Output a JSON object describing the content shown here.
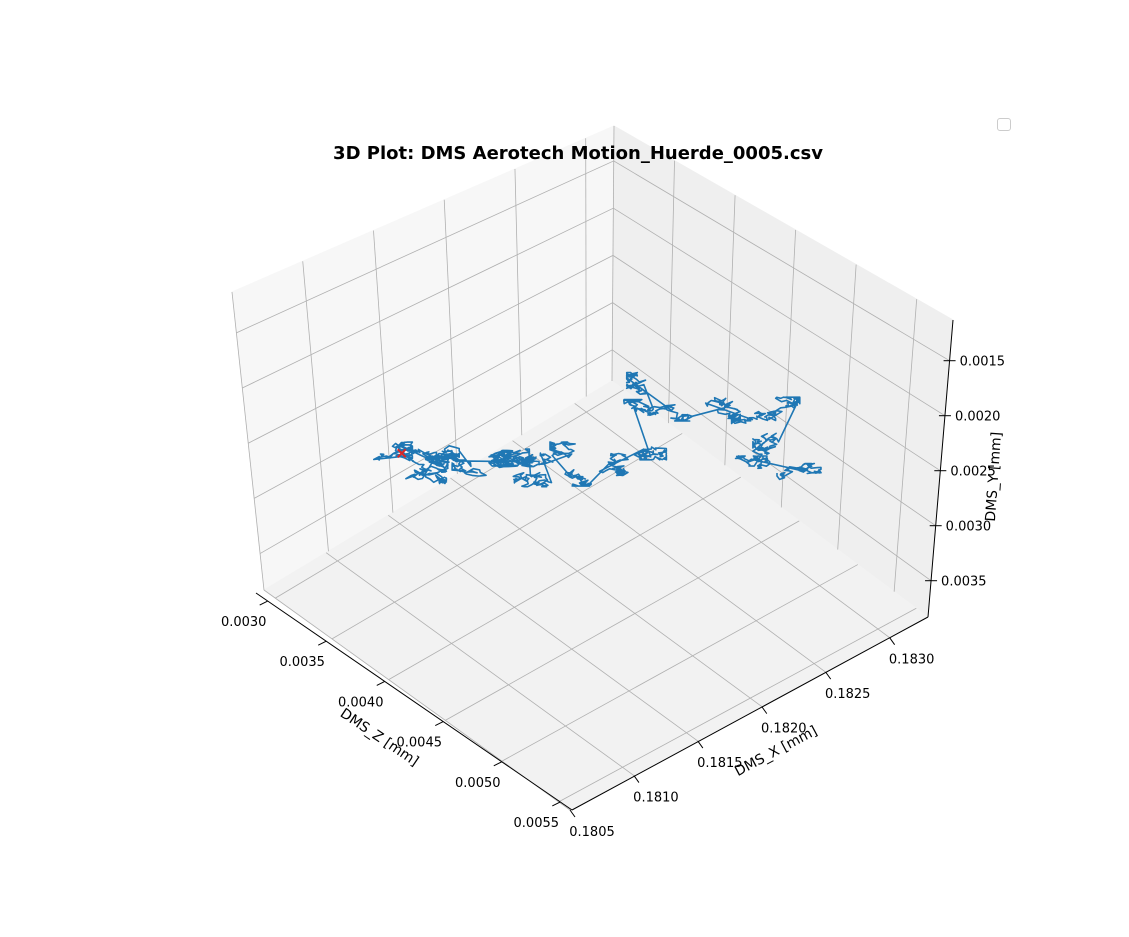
{
  "chart_data": {
    "type": "line3d",
    "title": "3D Plot: DMS Aerotech Motion_Huerde_0005.csv",
    "xlabel": "DMS_X [mm]",
    "ylabel": "DMS_Y [mm]",
    "zlabel": "DMS_Z [mm]",
    "x_ticks": [
      "0.1805",
      "0.1810",
      "0.1815",
      "0.1820",
      "0.1825",
      "0.1830"
    ],
    "z_ticks": [
      "0.0030",
      "0.0035",
      "0.0040",
      "0.0045",
      "0.0050",
      "0.0055"
    ],
    "y_ticks": [
      "0.0015",
      "0.0020",
      "0.0025",
      "0.0030",
      "0.0035"
    ],
    "xlim": [
      0.1805,
      0.1833
    ],
    "zlim": [
      0.0029,
      0.0056
    ],
    "ylim": [
      0.00383,
      0.00113
    ],
    "grid": true,
    "legend": "top-right (empty)",
    "series_color": "#1f77b4",
    "marker_color": "#d62728",
    "series": [
      {
        "clusters": [
          {
            "x": 0.1814,
            "z": 0.003,
            "y": 0.003
          },
          {
            "x": 0.1815,
            "z": 0.0031,
            "y": 0.003
          },
          {
            "x": 0.1815,
            "z": 0.0032,
            "y": 0.00305
          },
          {
            "x": 0.1814,
            "z": 0.0033,
            "y": 0.00302
          },
          {
            "x": 0.1815,
            "z": 0.0033,
            "y": 0.00285
          },
          {
            "x": 0.1817,
            "z": 0.0034,
            "y": 0.003
          },
          {
            "x": 0.1819,
            "z": 0.0035,
            "y": 0.00302
          },
          {
            "x": 0.1818,
            "z": 0.0036,
            "y": 0.0028
          },
          {
            "x": 0.1818,
            "z": 0.0038,
            "y": 0.00285
          },
          {
            "x": 0.182,
            "z": 0.0036,
            "y": 0.00295
          },
          {
            "x": 0.1822,
            "z": 0.0037,
            "y": 0.00298
          },
          {
            "x": 0.182,
            "z": 0.0039,
            "y": 0.0029
          },
          {
            "x": 0.1822,
            "z": 0.004,
            "y": 0.00285
          },
          {
            "x": 0.1825,
            "z": 0.004,
            "y": 0.0029
          },
          {
            "x": 0.1826,
            "z": 0.0038,
            "y": 0.00275
          },
          {
            "x": 0.1828,
            "z": 0.0037,
            "y": 0.0027
          },
          {
            "x": 0.1827,
            "z": 0.004,
            "y": 0.00265
          },
          {
            "x": 0.1829,
            "z": 0.0042,
            "y": 0.0026
          },
          {
            "x": 0.183,
            "z": 0.0044,
            "y": 0.00265
          },
          {
            "x": 0.1831,
            "z": 0.0045,
            "y": 0.0025
          },
          {
            "x": 0.1829,
            "z": 0.0047,
            "y": 0.00255
          },
          {
            "x": 0.1828,
            "z": 0.0046,
            "y": 0.0028
          },
          {
            "x": 0.183,
            "z": 0.0048,
            "y": 0.00285
          }
        ],
        "end_marker": {
          "x": 0.1814,
          "z": 0.0031,
          "y": 0.00292
        }
      }
    ]
  }
}
